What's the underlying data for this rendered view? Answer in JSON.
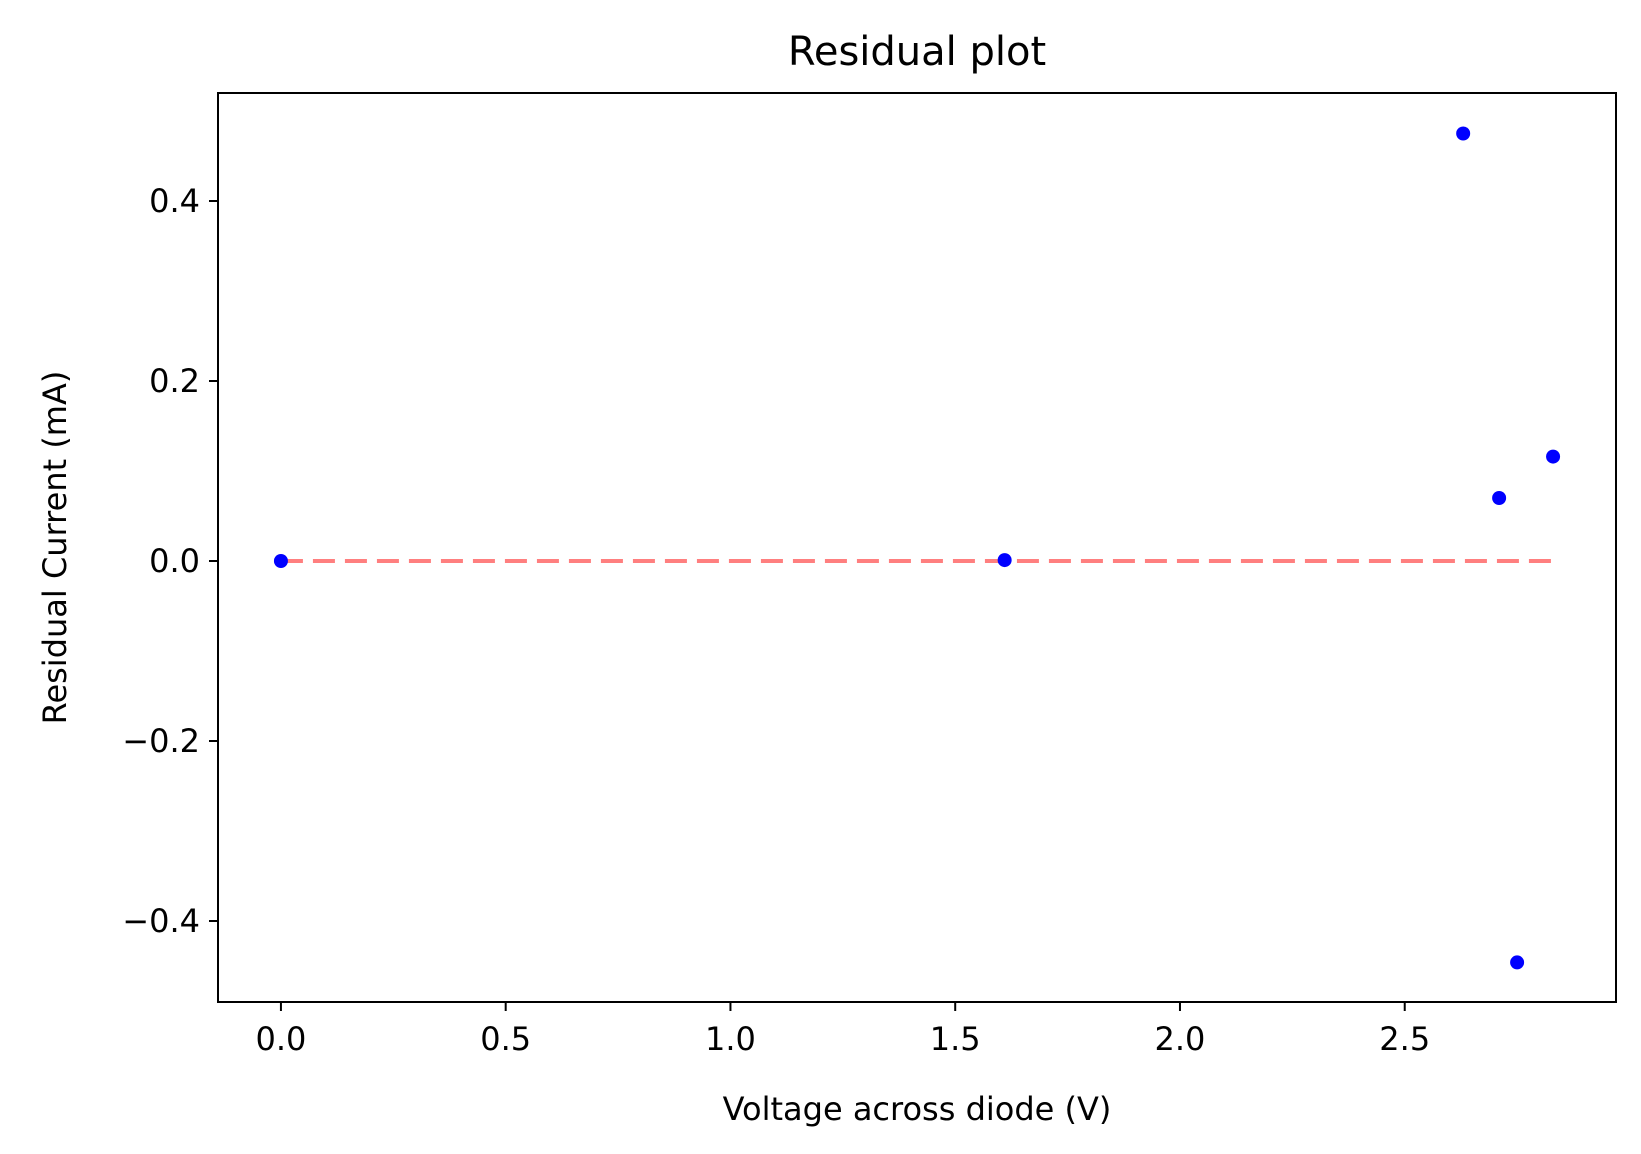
{
  "chart_data": {
    "type": "scatter",
    "title": "Residual plot",
    "xlabel": "Voltage across diode (V)",
    "ylabel": "Residual Current (mA)",
    "xlim": [
      -0.14,
      2.97
    ],
    "ylim": [
      -0.49,
      0.52
    ],
    "xticks": [
      0.0,
      0.5,
      1.0,
      1.5,
      2.0,
      2.5
    ],
    "xtick_labels": [
      "0.0",
      "0.5",
      "1.0",
      "1.5",
      "2.0",
      "2.5"
    ],
    "yticks": [
      -0.4,
      -0.2,
      0.0,
      0.2,
      0.4
    ],
    "ytick_labels": [
      "−0.4",
      "−0.2",
      "0.0",
      "0.2",
      "0.4"
    ],
    "grid": false,
    "series": [
      {
        "color": "#0000ff",
        "x": [
          0.0,
          1.61,
          2.63,
          2.71,
          2.75,
          2.83
        ],
        "y": [
          0.0,
          0.001,
          0.475,
          0.07,
          -0.446,
          0.116
        ]
      }
    ],
    "reference_line": {
      "y": 0.0,
      "x_range": [
        0.0,
        2.83
      ],
      "color": "#ff7f7f",
      "style": "dashed"
    }
  }
}
